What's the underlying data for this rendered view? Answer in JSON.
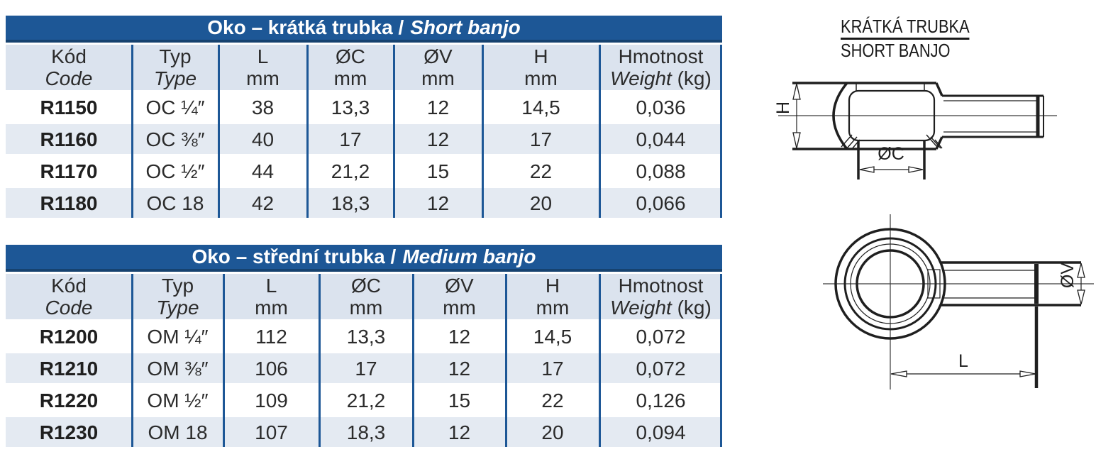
{
  "colors": {
    "header_blue": "#1d5796",
    "header_blue_dark": "#16426f",
    "column_header_bg": "#dbe3ee",
    "row_alt_bg": "#e4eaf2",
    "row_bg": "#ffffff",
    "text": "#2b2b2b",
    "drawing_line": "#1f1f1f"
  },
  "tables": [
    {
      "title_cs": "Oko – krátká trubka /",
      "title_en": "Short banjo",
      "headers": [
        {
          "top": "Kód",
          "bottom_italic": "Code"
        },
        {
          "top": "Typ",
          "bottom_italic": "Type"
        },
        {
          "top": "L",
          "bottom": "mm"
        },
        {
          "top": "ØC",
          "bottom": "mm"
        },
        {
          "top": "ØV",
          "bottom": "mm"
        },
        {
          "top": "H",
          "bottom": "mm"
        },
        {
          "top": "Hmotnost",
          "bottom_italic": "Weight",
          "bottom": " (kg)"
        }
      ],
      "rows": [
        [
          "R1150",
          "OC ¼″",
          "38",
          "13,3",
          "12",
          "14,5",
          "0,036"
        ],
        [
          "R1160",
          "OC ⅜″",
          "40",
          "17",
          "12",
          "17",
          "0,044"
        ],
        [
          "R1170",
          "OC ½″",
          "44",
          "21,2",
          "15",
          "22",
          "0,088"
        ],
        [
          "R1180",
          "OC 18",
          "42",
          "18,3",
          "12",
          "20",
          "0,066"
        ]
      ]
    },
    {
      "title_cs": "Oko – střední trubka /",
      "title_en": "Medium banjo",
      "headers": [
        {
          "top": "Kód",
          "bottom_italic": "Code"
        },
        {
          "top": "Typ",
          "bottom_italic": "Type"
        },
        {
          "top": "L",
          "bottom": "mm"
        },
        {
          "top": "ØC",
          "bottom": "mm"
        },
        {
          "top": "ØV",
          "bottom": "mm"
        },
        {
          "top": "H",
          "bottom": "mm"
        },
        {
          "top": "Hmotnost",
          "bottom_italic": "Weight",
          "bottom": " (kg)"
        }
      ],
      "rows": [
        [
          "R1200",
          "OM ¼″",
          "112",
          "13,3",
          "12",
          "14,5",
          "0,072"
        ],
        [
          "R1210",
          "OM ⅜″",
          "106",
          "17",
          "12",
          "17",
          "0,072"
        ],
        [
          "R1220",
          "OM ½″",
          "109",
          "21,2",
          "15",
          "22",
          "0,126"
        ],
        [
          "R1230",
          "OM 18",
          "107",
          "18,3",
          "12",
          "20",
          "0,094"
        ]
      ]
    }
  ],
  "drawing": {
    "title_line1": "KRÁTKÁ TRUBKA",
    "title_line2": "SHORT BANJO",
    "dims": {
      "h": "H",
      "oc": "ØC",
      "ov": "ØV",
      "l": "L"
    }
  }
}
